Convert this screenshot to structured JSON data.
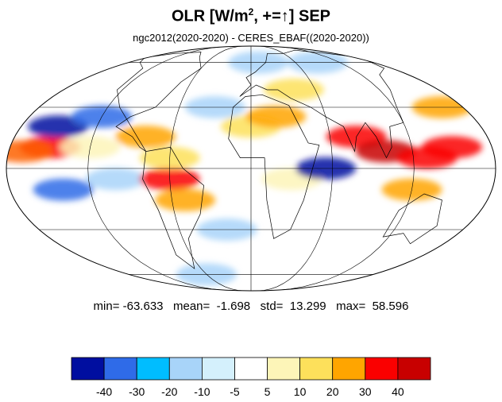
{
  "title": {
    "main": "OLR [W/m",
    "sup": "2",
    "rest": ", +=↑] SEP"
  },
  "subtitle": "ngc2012(2020-2020) - CERES_EBAF((2020-2020))",
  "stats": "min= -63.633   mean=  -1.698   std=  13.299   max=  58.596",
  "colors": {
    "ocean_background": "#ffffff",
    "coastline": "#000000",
    "grid": "#000000"
  },
  "map": {
    "projection": "mollweide",
    "fields": [
      {
        "lon": -150,
        "lat": 10,
        "color": "#fa0000"
      },
      {
        "lon": -170,
        "lat": 8,
        "color": "#fe6000"
      },
      {
        "lon": -120,
        "lat": 10,
        "color": "#fdf5b8"
      },
      {
        "lon": -150,
        "lat": 20,
        "color": "#000ea0"
      },
      {
        "lon": -120,
        "lat": 25,
        "color": "#2f6be8"
      },
      {
        "lon": -140,
        "lat": -10,
        "color": "#2f6be8"
      },
      {
        "lon": -100,
        "lat": -5,
        "color": "#a8d4f9"
      },
      {
        "lon": -80,
        "lat": 15,
        "color": "#ffa500"
      },
      {
        "lon": -60,
        "lat": -5,
        "color": "#fa0000"
      },
      {
        "lon": -60,
        "lat": 5,
        "color": "#fde05b"
      },
      {
        "lon": -50,
        "lat": -15,
        "color": "#ffa500"
      },
      {
        "lon": -30,
        "lat": 30,
        "color": "#a8d4f9"
      },
      {
        "lon": 0,
        "lat": 20,
        "color": "#fde05b"
      },
      {
        "lon": 20,
        "lat": 25,
        "color": "#ffa500"
      },
      {
        "lon": 30,
        "lat": -5,
        "color": "#fdf5b8"
      },
      {
        "lon": 55,
        "lat": 0,
        "color": "#000ea0"
      },
      {
        "lon": 80,
        "lat": 15,
        "color": "#fa0000"
      },
      {
        "lon": 100,
        "lat": 8,
        "color": "#c80000"
      },
      {
        "lon": 130,
        "lat": 5,
        "color": "#fa0000"
      },
      {
        "lon": 150,
        "lat": 10,
        "color": "#fa0000"
      },
      {
        "lon": 160,
        "lat": 30,
        "color": "#ffa500"
      },
      {
        "lon": 120,
        "lat": -10,
        "color": "#ffa500"
      },
      {
        "lon": -20,
        "lat": -30,
        "color": "#a8d4f9"
      },
      {
        "lon": 10,
        "lat": 60,
        "color": "#a8d4f9"
      },
      {
        "lon": 90,
        "lat": 60,
        "color": "#a8d4f9"
      },
      {
        "lon": -60,
        "lat": -60,
        "color": "#a8d4f9"
      },
      {
        "lon": 40,
        "lat": 40,
        "color": "#fde05b"
      }
    ]
  },
  "colorbar": {
    "colors": [
      "#000ea0",
      "#2f6be8",
      "#00bdff",
      "#a8d4f9",
      "#d4f0fc",
      "#ffffff",
      "#fdf5b8",
      "#fde05b",
      "#ffa500",
      "#fa0000",
      "#c80000"
    ],
    "tick_labels": [
      "-40",
      "-30",
      "-20",
      "-10",
      "-5",
      "5",
      "10",
      "20",
      "30",
      "40"
    ]
  }
}
